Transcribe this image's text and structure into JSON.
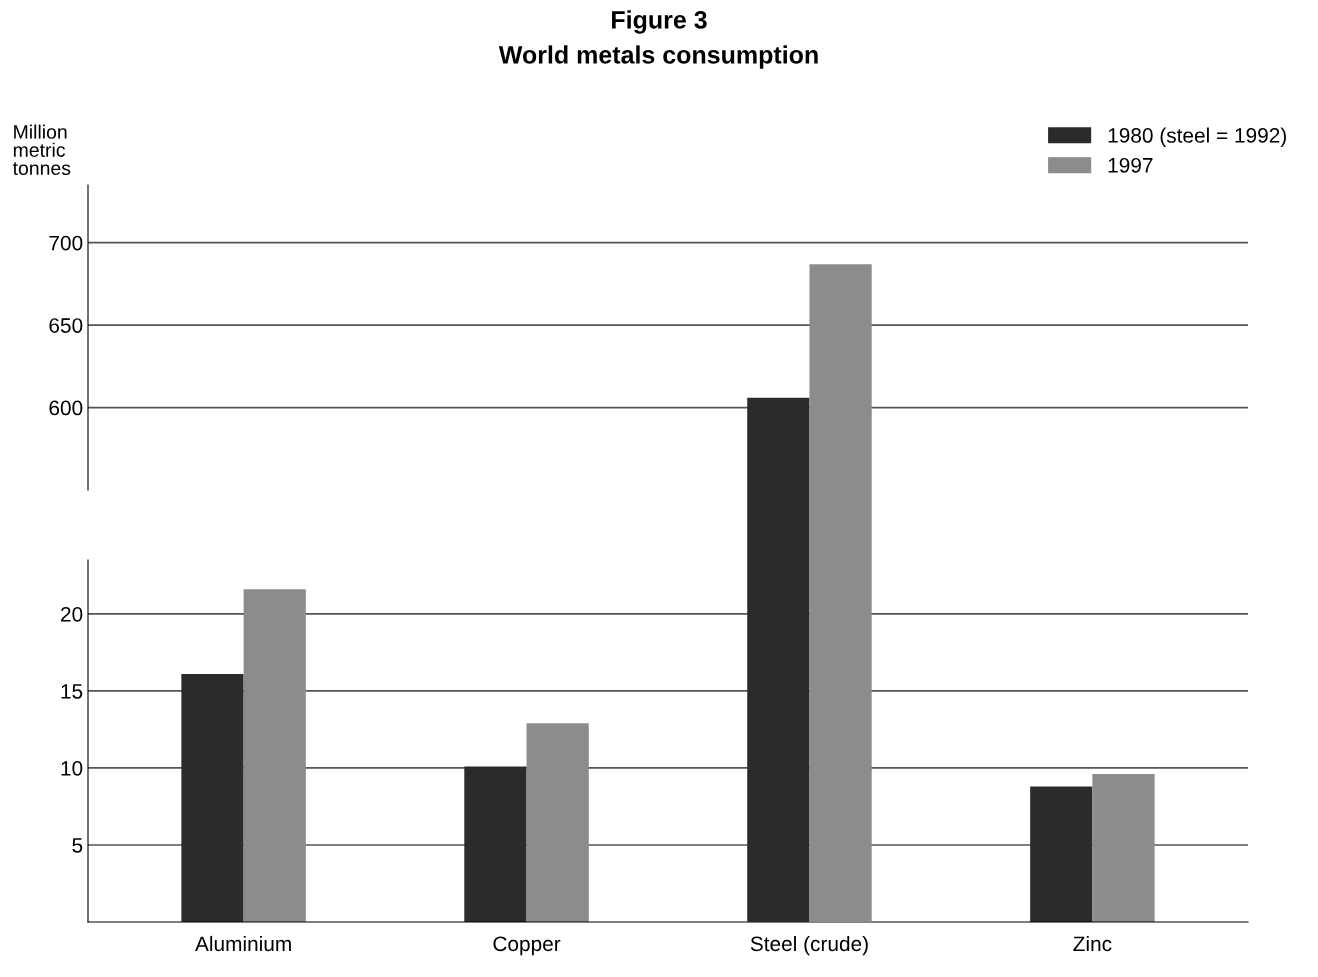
{
  "chart_data": [
    {
      "type": "bar",
      "title": "Figure 3",
      "subtitle": "World metals consumption",
      "ylabel": "Million\nmetric\ntonnes",
      "categories": [
        null,
        null,
        null,
        null
      ],
      "series": [
        {
          "name": "1980 (steel = 1992)",
          "color": "#2b2b2b",
          "values": [
            null,
            null,
            606,
            null
          ]
        },
        {
          "name": "1997",
          "color": "#8c8c8c",
          "values": [
            null,
            null,
            687,
            null
          ]
        }
      ],
      "ylim": [
        550,
        735
      ],
      "yticks": [
        600,
        650,
        700
      ],
      "grid": "y",
      "legend": "top right",
      "tick_labels": "y"
    },
    {
      "type": "bar",
      "categories": [
        "Aluminium",
        "Copper",
        "Steel (crude)",
        "Zinc"
      ],
      "series": [
        {
          "color": "#2b2b2b",
          "values": [
            16.1,
            10.1,
            null,
            8.8
          ]
        },
        {
          "color": "#8c8c8c",
          "values": [
            21.6,
            12.9,
            null,
            9.6
          ]
        }
      ],
      "ylim": [
        0,
        23.5
      ],
      "yticks": [
        5,
        10,
        15,
        20
      ],
      "grid": "y"
    }
  ]
}
